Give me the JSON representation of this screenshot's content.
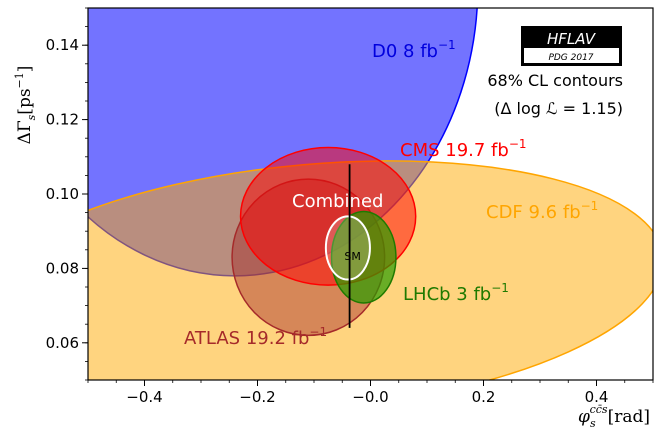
{
  "chart_data": {
    "type": "scatter",
    "subtype": "confidence-ellipses",
    "xlabel_main": "φ",
    "xlabel_sub": "s",
    "xlabel_sup": "cc̄s",
    "xlabel_unit": "[rad]",
    "ylabel_main": "ΔΓ",
    "ylabel_sub": "s",
    "ylabel_unit": "[ps",
    "ylabel_unit_sup": "−1",
    "ylabel_unit_close": "]",
    "xlim": [
      -0.5,
      0.5
    ],
    "ylim": [
      0.05,
      0.15
    ],
    "xticks": [
      -0.4,
      -0.2,
      0.0,
      0.2,
      0.4
    ],
    "xtick_labels": [
      "−0.4",
      "−0.2",
      "−0.0",
      "0.2",
      "0.4"
    ],
    "yticks": [
      0.06,
      0.08,
      0.1,
      0.12,
      0.14
    ],
    "ytick_labels": [
      "0.06",
      "0.08",
      "0.10",
      "0.12",
      "0.14"
    ],
    "grid": false,
    "legend": {
      "badge_top": "HFLAV",
      "badge_bottom": "PDG 2017",
      "line1": "68% CL contours",
      "line2": "(Δ log ℒ = 1.15)",
      "placement": "top-right"
    },
    "series": [
      {
        "name": "D0",
        "label": "D0 8 fb",
        "label_sup": "−1",
        "center": [
          -0.24,
          0.156
        ],
        "radii": [
          0.43,
          0.078
        ],
        "angle": 0,
        "fill": "#0000ff",
        "fill_opacity": 0.55,
        "stroke": "#0000ff",
        "color": "#0000dd"
      },
      {
        "name": "CDF",
        "label": "CDF 9.6 fb",
        "label_sup": "−1",
        "center": [
          -0.1,
          0.075
        ],
        "radii": [
          0.62,
          0.033
        ],
        "angle": 5,
        "fill": "#ffaa00",
        "fill_opacity": 0.5,
        "stroke": "#ffa500",
        "color": "#ffa500"
      },
      {
        "name": "ATLAS",
        "label": "ATLAS 19.2 fb",
        "label_sup": "−1",
        "center": [
          -0.11,
          0.083
        ],
        "radii": [
          0.135,
          0.021
        ],
        "angle": 0,
        "fill": "#a52a2a",
        "fill_opacity": 0.45,
        "stroke": "#a52a2a",
        "color": "#a52a2a"
      },
      {
        "name": "CMS",
        "label": "CMS 19.7 fb",
        "label_sup": "−1",
        "center": [
          -0.075,
          0.094
        ],
        "radii": [
          0.155,
          0.0185
        ],
        "angle": 0,
        "fill": "#ff0000",
        "fill_opacity": 0.5,
        "stroke": "#ff0000",
        "color": "#ff0000"
      },
      {
        "name": "LHCb",
        "label": "LHCb 3 fb",
        "label_sup": "−1",
        "center": [
          -0.012,
          0.083
        ],
        "radii": [
          0.057,
          0.0123
        ],
        "angle": 0,
        "fill": "#2a9d00",
        "fill_opacity": 0.7,
        "stroke": "#1f7a00",
        "color": "#1f7a00"
      },
      {
        "name": "Combined",
        "label": "Combined",
        "label_sup": "",
        "center": [
          -0.04,
          0.0855
        ],
        "radii": [
          0.039,
          0.0085
        ],
        "angle": 0,
        "fill": "#ffffff",
        "fill_opacity": 0.2,
        "stroke": "#ffffff",
        "color": "#ffffff"
      }
    ],
    "sm": {
      "label": "SM",
      "x": -0.037,
      "y_low": 0.064,
      "y_high": 0.108
    }
  }
}
